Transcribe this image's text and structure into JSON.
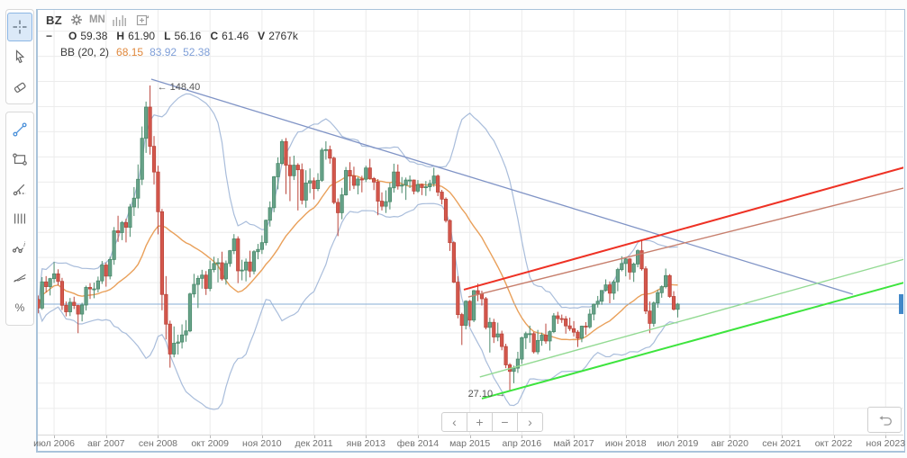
{
  "header": {
    "symbol": "BZ",
    "timeframe": "MN",
    "collapse_glyph": "−",
    "ohlc": [
      {
        "k": "O",
        "v": "59.38"
      },
      {
        "k": "H",
        "v": "61.90"
      },
      {
        "k": "L",
        "v": "56.16"
      },
      {
        "k": "C",
        "v": "61.46"
      },
      {
        "k": "V",
        "v": "2767k"
      }
    ],
    "indicator_label": "BB (20, 2)",
    "indicator_values": [
      {
        "text": "68.15",
        "color": "#e0883c"
      },
      {
        "text": "83.92",
        "color": "#7f9fd8"
      },
      {
        "text": "52.38",
        "color": "#7f9fd8"
      }
    ]
  },
  "toolbar": {
    "selected": "crosshair",
    "groups": [
      [
        "crosshair",
        "cursor",
        "eraser"
      ],
      [
        "trend-line",
        "rectangle",
        "trend-angle",
        "vertical-lines",
        "wave-annotation",
        "strike-line",
        "percent"
      ]
    ]
  },
  "nav": {
    "buttons": [
      {
        "name": "scroll-left-button",
        "glyph": "‹"
      },
      {
        "name": "zoom-in-button",
        "glyph": "+"
      },
      {
        "name": "zoom-out-button",
        "glyph": "−"
      },
      {
        "name": "scroll-right-button",
        "glyph": "›"
      }
    ]
  },
  "colors": {
    "up_fill": "#67a289",
    "up_stroke": "#4a8a6b",
    "down_fill": "#d4574c",
    "down_stroke": "#bb463c",
    "band": "#a9bddb",
    "sma": "#e9a05a",
    "grid": "#ececec",
    "price_line": "#85aed6",
    "price_tag": "#4288c8",
    "annotation_text": "#555555"
  },
  "chart_data": {
    "type": "candlestick",
    "symbol": "BZ",
    "interval": "monthly",
    "start_month": "2006-03",
    "last_bar": {
      "open": 59.38,
      "high": 61.9,
      "low": 56.16,
      "close": 61.46,
      "volume": "2767k"
    },
    "indicator": {
      "name": "Bollinger Bands",
      "period": 20,
      "deviation": 2,
      "last_values": {
        "middle": 68.15,
        "upper": 83.92,
        "lower": 52.38
      }
    },
    "price_line_value": 61.46,
    "high_label": "148.40",
    "low_label": "27.10",
    "ylim_visible": [
      11.4,
      178.8
    ],
    "grid_price_step": 10,
    "x_ticks": [
      "июл 2006",
      "авг 2007",
      "сен 2008",
      "окт 2009",
      "ноя 2010",
      "дек 2011",
      "янв 2013",
      "фев 2014",
      "мар 2015",
      "апр 2016",
      "май 2017",
      "июн 2018",
      "июл 2019",
      "авг 2020",
      "сен 2021",
      "окт 2022",
      "ноя 2023"
    ],
    "tick_month_stride": 13,
    "annotations": [
      {
        "name": "high-annotation",
        "text": "← 148.40",
        "t": 28.9,
        "price": 148.0,
        "anchor": "start"
      },
      {
        "name": "low-annotation",
        "text": "27.10 →",
        "t": 117.8,
        "price": 26.0,
        "anchor": "end"
      }
    ],
    "drawings": [
      {
        "name": "descending-trendline",
        "color": "#8094c6",
        "width": 1.3,
        "t1": 28.3,
        "p1": 150.9,
        "t2": 203.8,
        "p2": 65.4
      },
      {
        "name": "ascending-channel-upper",
        "color": "#ee3124",
        "width": 2.0,
        "t1": 106.5,
        "p1": 67.2,
        "t2": 217.5,
        "p2": 116.2
      },
      {
        "name": "ascending-channel-lower",
        "color": "#c77f6d",
        "width": 1.4,
        "t1": 107.6,
        "p1": 64.3,
        "t2": 217.5,
        "p2": 108.0
      },
      {
        "name": "ascending-support-upper",
        "color": "#93da93",
        "width": 1.4,
        "t1": 110.5,
        "p1": 32.5,
        "t2": 217.5,
        "p2": 79.7
      },
      {
        "name": "ascending-support-lower",
        "color": "#3de43d",
        "width": 2.0,
        "t1": 111.0,
        "p1": 23.9,
        "t2": 217.5,
        "p2": 70.4
      }
    ],
    "ohlc": [
      [
        63.3,
        64.9,
        57.8,
        59.9
      ],
      [
        59.9,
        72.2,
        59.2,
        70.3
      ],
      [
        70.3,
        72.6,
        66.1,
        68.4
      ],
      [
        68.4,
        71.9,
        64.9,
        71.6
      ],
      [
        71.6,
        78.2,
        69.9,
        73.5
      ],
      [
        73.5,
        75.3,
        68.9,
        70.5
      ],
      [
        70.5,
        71.9,
        59.1,
        61.0
      ],
      [
        61.0,
        62.5,
        56.6,
        58.4
      ],
      [
        58.4,
        63.9,
        56.7,
        62.2
      ],
      [
        62.2,
        64.4,
        59.5,
        60.9
      ],
      [
        60.9,
        61.2,
        49.9,
        57.5
      ],
      [
        57.5,
        62.0,
        54.6,
        61.1
      ],
      [
        61.1,
        68.8,
        58.9,
        68.1
      ],
      [
        68.1,
        69.8,
        63.5,
        67.5
      ],
      [
        67.5,
        70.0,
        63.8,
        67.5
      ],
      [
        67.5,
        72.4,
        66.1,
        70.7
      ],
      [
        70.7,
        78.6,
        69.5,
        77.0
      ],
      [
        77.0,
        78.0,
        68.4,
        72.6
      ],
      [
        72.6,
        80.3,
        71.3,
        79.2
      ],
      [
        79.2,
        92.1,
        77.1,
        90.6
      ],
      [
        90.6,
        96.6,
        86.2,
        89.9
      ],
      [
        89.9,
        94.5,
        86.9,
        93.9
      ],
      [
        93.9,
        95.4,
        86.0,
        92.0
      ],
      [
        92.0,
        101.3,
        88.2,
        100.1
      ],
      [
        100.1,
        108.0,
        96.5,
        103.6
      ],
      [
        103.6,
        117.0,
        99.6,
        111.1
      ],
      [
        111.1,
        132.1,
        108.8,
        127.4
      ],
      [
        127.4,
        142.0,
        121.6,
        139.8
      ],
      [
        139.8,
        148.4,
        120.9,
        124.2
      ],
      [
        124.2,
        128.3,
        109.0,
        114.0
      ],
      [
        114.0,
        116.5,
        89.2,
        98.2
      ],
      [
        98.2,
        99.3,
        59.0,
        65.3
      ],
      [
        65.3,
        72.6,
        47.4,
        53.5
      ],
      [
        53.5,
        54.9,
        36.2,
        41.6
      ],
      [
        41.6,
        52.6,
        40.3,
        45.9
      ],
      [
        45.9,
        49.3,
        41.4,
        46.4
      ],
      [
        46.4,
        53.4,
        43.8,
        49.2
      ],
      [
        49.2,
        55.1,
        46.5,
        50.8
      ],
      [
        50.8,
        66.0,
        50.3,
        65.5
      ],
      [
        65.5,
        73.5,
        64.1,
        69.3
      ],
      [
        69.3,
        72.8,
        59.9,
        71.7
      ],
      [
        71.7,
        75.1,
        67.6,
        73.0
      ],
      [
        73.0,
        74.6,
        65.1,
        67.7
      ],
      [
        67.7,
        78.8,
        66.6,
        75.2
      ],
      [
        75.2,
        80.3,
        74.1,
        77.6
      ],
      [
        77.6,
        79.7,
        70.1,
        77.9
      ],
      [
        77.9,
        82.3,
        70.8,
        71.5
      ],
      [
        71.5,
        78.8,
        69.2,
        77.6
      ],
      [
        77.6,
        83.0,
        76.3,
        82.7
      ],
      [
        82.7,
        89.3,
        81.3,
        87.4
      ],
      [
        87.4,
        88.4,
        69.8,
        74.7
      ],
      [
        74.7,
        79.1,
        70.9,
        75.0
      ],
      [
        75.0,
        79.6,
        70.5,
        78.2
      ],
      [
        78.2,
        82.7,
        72.1,
        74.6
      ],
      [
        74.6,
        82.9,
        73.3,
        82.3
      ],
      [
        82.3,
        85.4,
        79.3,
        83.2
      ],
      [
        83.2,
        88.8,
        81.4,
        85.9
      ],
      [
        85.9,
        95.1,
        84.8,
        94.8
      ],
      [
        94.8,
        102.3,
        92.3,
        99.8
      ],
      [
        99.8,
        112.4,
        98.0,
        112.1
      ],
      [
        112.1,
        119.8,
        107.1,
        117.4
      ],
      [
        117.4,
        127.0,
        116.8,
        126.1
      ],
      [
        126.1,
        127.5,
        105.2,
        116.7
      ],
      [
        116.7,
        120.1,
        102.4,
        112.5
      ],
      [
        112.5,
        120.5,
        110.8,
        116.7
      ],
      [
        116.7,
        117.5,
        98.7,
        114.9
      ],
      [
        114.9,
        117.4,
        101.1,
        102.8
      ],
      [
        102.8,
        114.7,
        99.8,
        109.6
      ],
      [
        109.6,
        115.4,
        105.6,
        110.5
      ],
      [
        110.5,
        111.8,
        103.1,
        107.4
      ],
      [
        107.4,
        113.5,
        106.4,
        110.7
      ],
      [
        110.7,
        123.6,
        110.1,
        122.7
      ],
      [
        122.7,
        126.2,
        118.9,
        122.9
      ],
      [
        122.9,
        124.5,
        117.3,
        119.5
      ],
      [
        119.5,
        120.1,
        101.2,
        101.9
      ],
      [
        101.9,
        103.5,
        88.5,
        97.8
      ],
      [
        97.8,
        107.7,
        95.2,
        104.9
      ],
      [
        104.9,
        116.0,
        104.6,
        114.6
      ],
      [
        114.6,
        117.9,
        106.6,
        112.4
      ],
      [
        112.4,
        116.1,
        107.2,
        108.7
      ],
      [
        108.7,
        112.0,
        105.1,
        111.2
      ],
      [
        111.2,
        112.5,
        105.9,
        111.1
      ],
      [
        111.1,
        116.5,
        110.0,
        115.6
      ],
      [
        115.6,
        119.2,
        110.9,
        111.4
      ],
      [
        111.4,
        112.0,
        106.8,
        110.0
      ],
      [
        110.0,
        111.2,
        96.8,
        102.4
      ],
      [
        102.4,
        105.9,
        98.7,
        100.4
      ],
      [
        100.4,
        106.7,
        97.7,
        102.2
      ],
      [
        102.2,
        109.7,
        99.1,
        107.7
      ],
      [
        107.7,
        117.3,
        105.8,
        114.0
      ],
      [
        114.0,
        117.0,
        107.0,
        108.4
      ],
      [
        108.4,
        112.0,
        105.6,
        108.8
      ],
      [
        108.8,
        111.8,
        102.9,
        110.8
      ],
      [
        110.8,
        112.6,
        107.6,
        110.8
      ],
      [
        110.8,
        111.0,
        105.1,
        106.4
      ],
      [
        106.4,
        110.8,
        105.7,
        109.0
      ],
      [
        109.0,
        109.4,
        104.8,
        107.8
      ],
      [
        107.8,
        110.4,
        104.5,
        108.1
      ],
      [
        108.1,
        110.9,
        106.4,
        109.4
      ],
      [
        109.4,
        115.7,
        108.1,
        112.4
      ],
      [
        112.4,
        113.0,
        104.4,
        106.0
      ],
      [
        106.0,
        106.9,
        101.1,
        103.2
      ],
      [
        103.2,
        103.9,
        93.9,
        94.7
      ],
      [
        94.7,
        95.2,
        82.6,
        85.9
      ],
      [
        85.9,
        86.4,
        69.8,
        70.2
      ],
      [
        70.2,
        72.6,
        55.8,
        57.3
      ],
      [
        57.3,
        58.0,
        45.2,
        53.0
      ],
      [
        53.0,
        63.0,
        51.4,
        62.6
      ],
      [
        62.6,
        63.1,
        52.5,
        55.1
      ],
      [
        55.1,
        67.1,
        54.3,
        66.8
      ],
      [
        66.8,
        69.6,
        62.6,
        65.6
      ],
      [
        65.6,
        66.8,
        60.9,
        63.6
      ],
      [
        63.6,
        64.3,
        51.4,
        52.2
      ],
      [
        52.2,
        56.1,
        42.2,
        54.2
      ],
      [
        54.2,
        55.6,
        46.0,
        48.4
      ],
      [
        48.4,
        54.1,
        46.7,
        49.6
      ],
      [
        49.6,
        50.9,
        43.1,
        44.6
      ],
      [
        44.6,
        45.7,
        36.0,
        37.3
      ],
      [
        37.3,
        38.0,
        27.1,
        34.7
      ],
      [
        34.7,
        37.0,
        30.0,
        36.0
      ],
      [
        36.0,
        42.5,
        34.1,
        39.6
      ],
      [
        39.6,
        48.5,
        37.7,
        48.1
      ],
      [
        48.1,
        50.5,
        43.6,
        49.7
      ],
      [
        49.7,
        52.9,
        46.1,
        49.7
      ],
      [
        49.7,
        50.4,
        41.8,
        42.5
      ],
      [
        42.5,
        51.2,
        41.5,
        47.0
      ],
      [
        47.0,
        50.1,
        44.9,
        49.1
      ],
      [
        49.1,
        53.7,
        45.7,
        46.8
      ],
      [
        46.8,
        51.0,
        43.0,
        50.5
      ],
      [
        50.5,
        57.9,
        49.9,
        56.8
      ],
      [
        56.8,
        58.4,
        53.6,
        55.7
      ],
      [
        55.7,
        57.3,
        54.0,
        55.6
      ],
      [
        55.6,
        56.7,
        49.7,
        52.8
      ],
      [
        52.8,
        56.1,
        50.8,
        51.7
      ],
      [
        51.7,
        54.7,
        48.6,
        50.3
      ],
      [
        50.3,
        51.1,
        44.4,
        47.9
      ],
      [
        47.9,
        52.9,
        46.3,
        52.7
      ],
      [
        52.7,
        54.3,
        49.2,
        52.4
      ],
      [
        52.4,
        59.5,
        51.7,
        57.5
      ],
      [
        57.5,
        61.7,
        55.0,
        61.4
      ],
      [
        61.4,
        64.7,
        60.1,
        62.6
      ],
      [
        62.6,
        67.0,
        61.2,
        66.9
      ],
      [
        66.9,
        71.3,
        66.5,
        69.1
      ],
      [
        69.1,
        70.5,
        61.8,
        65.8
      ],
      [
        65.8,
        71.1,
        63.2,
        70.3
      ],
      [
        70.3,
        75.9,
        66.6,
        75.2
      ],
      [
        75.2,
        80.5,
        74.5,
        77.6
      ],
      [
        77.6,
        79.9,
        72.5,
        79.4
      ],
      [
        79.4,
        79.8,
        71.2,
        74.2
      ],
      [
        74.2,
        78.0,
        70.3,
        77.4
      ],
      [
        77.4,
        83.2,
        76.1,
        82.7
      ],
      [
        82.7,
        86.7,
        74.8,
        75.5
      ],
      [
        75.5,
        76.5,
        57.5,
        58.7
      ],
      [
        58.7,
        62.5,
        49.9,
        53.8
      ],
      [
        53.8,
        62.5,
        52.5,
        61.9
      ],
      [
        61.9,
        67.1,
        60.0,
        66.0
      ],
      [
        66.0,
        68.9,
        64.0,
        68.4
      ],
      [
        68.4,
        75.6,
        67.7,
        72.8
      ],
      [
        72.8,
        73.4,
        64.0,
        64.5
      ],
      [
        64.5,
        66.6,
        58.9,
        59.4
      ],
      [
        59.38,
        61.9,
        56.16,
        61.46
      ]
    ]
  }
}
